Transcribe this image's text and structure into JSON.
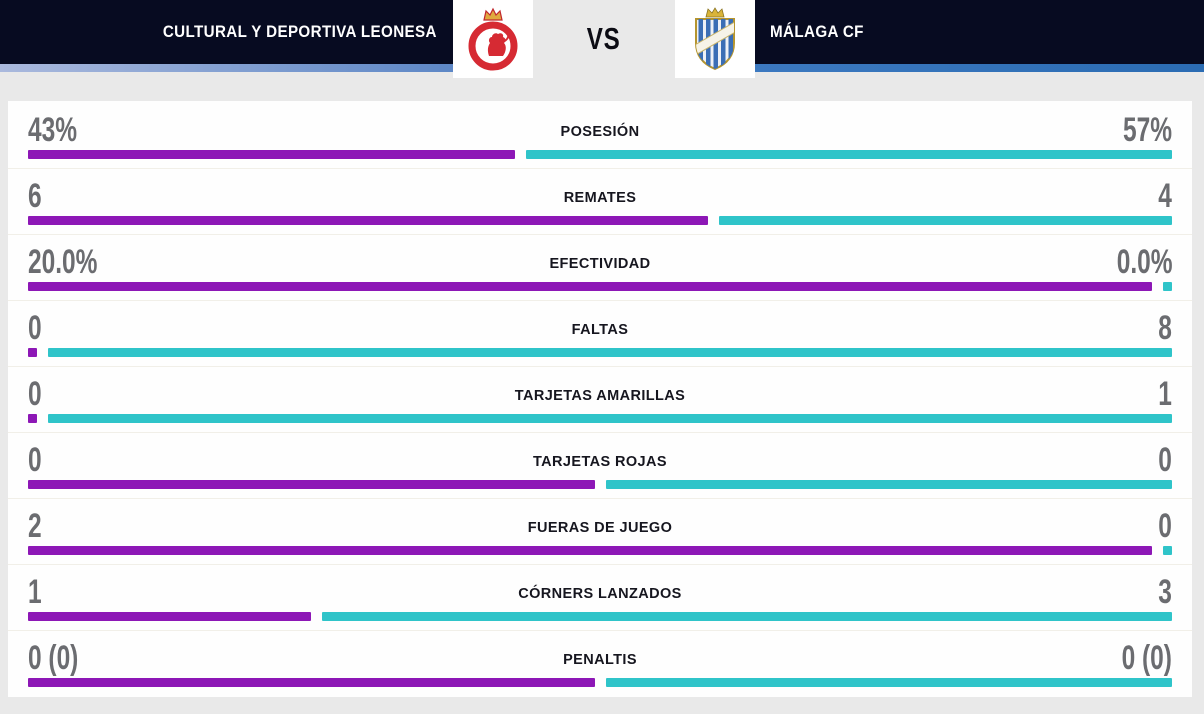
{
  "header": {
    "home_team": "CULTURAL Y DEPORTIVA LEONESA",
    "away_team": "MÁLAGA CF",
    "vs_label": "VS"
  },
  "colors": {
    "home_bar": "#8d17b6",
    "away_bar": "#2fc4c9",
    "header_bg": "#070b21",
    "underline_light_blue": "#aab9dd",
    "underline_blue": "#2b6cb3",
    "value_gray": "#6b6c70",
    "label_dark": "#16161f",
    "page_bg": "#e9e9e9",
    "panel_bg": "#fefefe"
  },
  "chart_data": {
    "type": "bar",
    "title": "CULTURAL Y DEPORTIVA LEONESA VS MÁLAGA CF",
    "layout": {
      "orientation": "horizontal-paired",
      "labels_position": "center",
      "values_position": "row-ends",
      "bar_split_rule": "home/(home+away), 50/50 when both zero"
    },
    "categories": [
      "POSESIÓN",
      "REMATES",
      "EFECTIVIDAD",
      "FALTAS",
      "TARJETAS AMARILLAS",
      "TARJETAS ROJAS",
      "FUERAS DE JUEGO",
      "CÓRNERS LANZADOS",
      "PENALTIS"
    ],
    "series": [
      {
        "name": "CULTURAL Y DEPORTIVA LEONESA",
        "color": "#8d17b6",
        "values": [
          43,
          6,
          20.0,
          0,
          0,
          0,
          2,
          1,
          0
        ],
        "display": [
          "43%",
          "6",
          "20.0%",
          "0",
          "0",
          "0",
          "2",
          "1",
          "0 (0)"
        ]
      },
      {
        "name": "MÁLAGA CF",
        "color": "#2fc4c9",
        "values": [
          57,
          4,
          0.0,
          8,
          1,
          0,
          0,
          3,
          0
        ],
        "display": [
          "57%",
          "4",
          "0.0%",
          "8",
          "1",
          "0",
          "0",
          "3",
          "0 (0)"
        ]
      }
    ]
  }
}
